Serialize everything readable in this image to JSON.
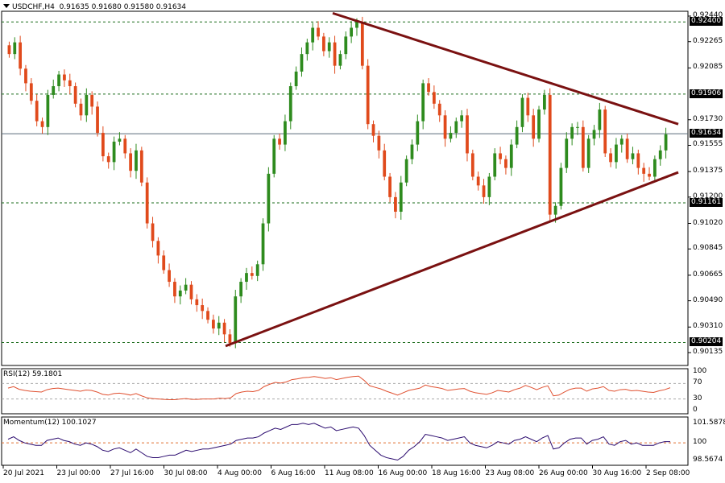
{
  "header": {
    "dropdown_icon": "triangle-down-icon",
    "symbol": "USDCHF,H4",
    "ohlc": "0.91635 0.91680 0.91580 0.91634"
  },
  "price_axis": {
    "ticks": [
      "0.92440",
      "0.92265",
      "0.92085",
      "0.91730",
      "0.91555",
      "0.91375",
      "0.91200",
      "0.91020",
      "0.90845",
      "0.90665",
      "0.90490",
      "0.90310",
      "0.90135"
    ],
    "levels": [
      {
        "label": "0.92400",
        "value": 0.924
      },
      {
        "label": "0.91906",
        "value": 0.91906
      },
      {
        "label": "0.91161",
        "value": 0.91161
      },
      {
        "label": "0.90204",
        "value": 0.90204
      }
    ],
    "current": {
      "label": "0.91634",
      "value": 0.91634
    }
  },
  "rsi": {
    "title": "RSI(12) 59.1801",
    "ticks": [
      "100",
      "70",
      "30",
      "0"
    ],
    "levels": [
      70,
      30
    ]
  },
  "momentum": {
    "title": "Momentum(12) 100.1027",
    "ticks": [
      "101.5878",
      "100",
      "98.5674"
    ],
    "level": 100
  },
  "time_axis": [
    "20 Jul 2021",
    "23 Jul 00:00",
    "27 Jul 16:00",
    "30 Jul 08:00",
    "4 Aug 00:00",
    "6 Aug 16:00",
    "11 Aug 08:00",
    "16 Aug 00:00",
    "18 Aug 16:00",
    "23 Aug 08:00",
    "26 Aug 00:00",
    "30 Aug 16:00",
    "2 Sep 08:00"
  ],
  "colors": {
    "bull": "#2e8b1e",
    "bear": "#e04a1c",
    "trendline": "#7a1111",
    "level_line": "#1a6b1a",
    "rsi_line": "#e05030",
    "momentum_line": "#2a0a6e",
    "momentum_level": "#e07030"
  },
  "chart_data": [
    {
      "type": "candlestick",
      "title": "USDCHF,H4",
      "ylim": [
        0.90135,
        0.9244
      ],
      "close_path": [
        0.9218,
        0.9226,
        0.9208,
        0.9198,
        0.9186,
        0.9172,
        0.9168,
        0.919,
        0.9196,
        0.9204,
        0.92,
        0.9196,
        0.9184,
        0.9176,
        0.919,
        0.9182,
        0.9164,
        0.9148,
        0.9144,
        0.9158,
        0.916,
        0.915,
        0.9138,
        0.9152,
        0.913,
        0.9102,
        0.909,
        0.908,
        0.907,
        0.9062,
        0.9052,
        0.9056,
        0.906,
        0.905,
        0.9046,
        0.9042,
        0.9036,
        0.903,
        0.9034,
        0.9026,
        0.902,
        0.9052,
        0.9062,
        0.9068,
        0.9066,
        0.9074,
        0.9102,
        0.9136,
        0.916,
        0.9156,
        0.9172,
        0.9196,
        0.9206,
        0.9218,
        0.9226,
        0.9236,
        0.923,
        0.922,
        0.9226,
        0.921,
        0.9218,
        0.923,
        0.9236,
        0.924,
        0.921,
        0.917,
        0.9162,
        0.9152,
        0.9134,
        0.912,
        0.911,
        0.913,
        0.9146,
        0.9156,
        0.9172,
        0.9198,
        0.9192,
        0.9184,
        0.9176,
        0.916,
        0.9164,
        0.9172,
        0.9176,
        0.915,
        0.9134,
        0.9128,
        0.912,
        0.9134,
        0.915,
        0.9146,
        0.914,
        0.9156,
        0.9168,
        0.9188,
        0.9176,
        0.916,
        0.918,
        0.919,
        0.9108,
        0.9114,
        0.914,
        0.916,
        0.9168,
        0.9168,
        0.914,
        0.916,
        0.9166,
        0.918,
        0.915,
        0.9144,
        0.9156,
        0.916,
        0.9146,
        0.915,
        0.914,
        0.9136,
        0.9134,
        0.9146,
        0.9152,
        0.9163
      ],
      "trendlines": [
        {
          "name": "upper",
          "from": {
            "x": "11 Aug 08:00",
            "y": 0.9246
          },
          "to": {
            "x": "2 Sep 08:00",
            "y": 0.917
          }
        },
        {
          "name": "lower",
          "from": {
            "x": "4 Aug 00:00",
            "y": 0.9018
          },
          "to": {
            "x": "2 Sep 08:00",
            "y": 0.9137
          }
        }
      ]
    },
    {
      "type": "line",
      "title": "RSI(12)",
      "ylim": [
        0,
        100
      ],
      "values": [
        58,
        62,
        55,
        52,
        50,
        49,
        48,
        54,
        57,
        58,
        56,
        54,
        52,
        50,
        53,
        52,
        48,
        42,
        40,
        44,
        45,
        43,
        40,
        44,
        38,
        33,
        31,
        30,
        29,
        28,
        28,
        30,
        31,
        29,
        29,
        30,
        30,
        30,
        32,
        31,
        33,
        44,
        48,
        50,
        49,
        52,
        62,
        68,
        73,
        71,
        74,
        80,
        82,
        85,
        86,
        88,
        86,
        83,
        85,
        80,
        83,
        86,
        88,
        89,
        78,
        64,
        60,
        56,
        50,
        45,
        40,
        46,
        52,
        55,
        58,
        66,
        62,
        60,
        57,
        52,
        54,
        56,
        57,
        50,
        46,
        44,
        42,
        46,
        52,
        50,
        48,
        54,
        58,
        65,
        60,
        54,
        60,
        64,
        38,
        40,
        48,
        55,
        58,
        58,
        50,
        56,
        58,
        62,
        52,
        50,
        54,
        55,
        51,
        52,
        50,
        48,
        47,
        51,
        54,
        59.1801
      ]
    },
    {
      "type": "line",
      "title": "Momentum(12)",
      "ylim": [
        98.5674,
        101.5878
      ],
      "level": 100,
      "values": [
        100.3,
        100.5,
        100.2,
        100.0,
        99.9,
        99.8,
        99.8,
        100.2,
        100.3,
        100.4,
        100.2,
        100.1,
        99.9,
        99.8,
        100.0,
        99.9,
        99.7,
        99.4,
        99.3,
        99.5,
        99.6,
        99.4,
        99.2,
        99.5,
        99.2,
        98.9,
        98.8,
        98.8,
        98.9,
        99.0,
        99.0,
        99.2,
        99.4,
        99.3,
        99.4,
        99.5,
        99.5,
        99.6,
        99.7,
        99.8,
        99.9,
        100.2,
        100.3,
        100.4,
        100.4,
        100.5,
        100.8,
        101.0,
        101.2,
        101.1,
        101.3,
        101.5,
        101.5,
        101.6,
        101.5,
        101.6,
        101.4,
        101.2,
        101.3,
        101.0,
        101.1,
        101.2,
        101.3,
        101.2,
        100.6,
        99.8,
        99.4,
        99.0,
        98.8,
        98.7,
        98.6,
        98.9,
        99.4,
        99.7,
        100.1,
        100.7,
        100.6,
        100.5,
        100.4,
        100.2,
        100.3,
        100.4,
        100.5,
        100.0,
        99.8,
        99.7,
        99.6,
        99.8,
        100.1,
        100.0,
        99.9,
        100.2,
        100.3,
        100.5,
        100.3,
        100.1,
        100.4,
        100.6,
        99.5,
        99.6,
        100.0,
        100.3,
        100.4,
        100.4,
        99.9,
        100.2,
        100.3,
        100.5,
        99.9,
        99.8,
        100.1,
        100.2,
        99.9,
        100.0,
        99.8,
        99.8,
        99.8,
        100.0,
        100.1,
        100.1027
      ]
    }
  ]
}
